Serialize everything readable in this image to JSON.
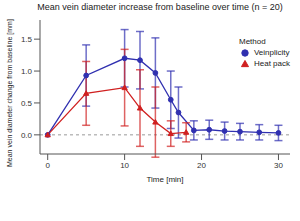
{
  "chart_data": {
    "type": "line",
    "title": "Mean vein diameter increase from baseline over time (n = 20)",
    "x_label": "Time [min]",
    "y_label": "Mean vein diameter change from baseline [mm]",
    "legend_title": "Method",
    "legend": "upper right",
    "grid": false,
    "hline": 0,
    "xlim": [
      -1,
      31.5
    ],
    "xticks": [
      0,
      10,
      20,
      30
    ],
    "ylim": [
      -0.3,
      1.8
    ],
    "yticks": [
      {
        "value": 0,
        "label": "0.0"
      },
      {
        "value": 0.5,
        "label": "0.5"
      },
      {
        "value": 1,
        "label": "1.0"
      },
      {
        "value": 1.5,
        "label": "1.5"
      }
    ],
    "series": [
      {
        "name": "Veinplicity",
        "color": "#3030b0",
        "marker": "circle",
        "x": [
          0,
          5,
          10,
          12,
          14,
          16,
          17,
          19,
          21,
          23,
          25,
          27.5,
          30
        ],
        "values": [
          0,
          0.93,
          1.2,
          1.17,
          0.97,
          0.55,
          0.35,
          0.07,
          0.08,
          0.06,
          0.05,
          0.04,
          0.03
        ],
        "errors": [
          0,
          0.48,
          0.45,
          0.45,
          0.55,
          0.45,
          0.4,
          0.15,
          0.15,
          0.14,
          0.13,
          0.12,
          0.12
        ]
      },
      {
        "name": "Heat pack",
        "color": "#d02020",
        "marker": "triangle",
        "x": [
          0,
          5,
          10,
          12,
          14,
          16,
          18
        ],
        "values": [
          0,
          0.65,
          0.74,
          0.42,
          0.2,
          0.02,
          0.04
        ],
        "errors": [
          0,
          0.5,
          0.6,
          0.6,
          0.55,
          0.2,
          0.15
        ]
      }
    ]
  }
}
